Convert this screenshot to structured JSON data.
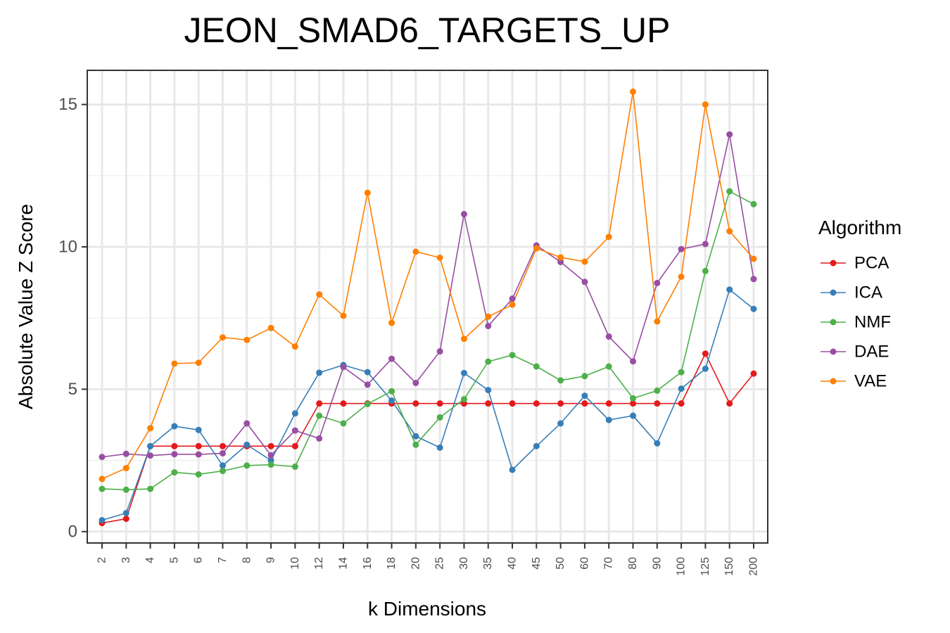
{
  "chart_data": {
    "type": "line",
    "title": "JEON_SMAD6_TARGETS_UP",
    "xlabel": "k Dimensions",
    "ylabel": "Absolute Value Z Score",
    "categories": [
      "2",
      "3",
      "4",
      "5",
      "6",
      "7",
      "8",
      "9",
      "10",
      "12",
      "14",
      "16",
      "18",
      "20",
      "25",
      "30",
      "35",
      "40",
      "45",
      "50",
      "60",
      "70",
      "80",
      "90",
      "100",
      "125",
      "150",
      "200"
    ],
    "ylim": [
      -0.4,
      16.2
    ],
    "yticks": [
      0,
      5,
      10,
      15
    ],
    "grid": true,
    "legend": {
      "title": "Algorithm",
      "position": "right"
    },
    "series": [
      {
        "name": "PCA",
        "color": "#e41a1c",
        "values": [
          0.3,
          0.45,
          3.0,
          3.0,
          3.0,
          3.0,
          3.0,
          3.0,
          3.0,
          4.5,
          4.5,
          4.5,
          4.5,
          4.5,
          4.5,
          4.5,
          4.5,
          4.5,
          4.5,
          4.5,
          4.5,
          4.5,
          4.5,
          4.5,
          4.5,
          6.25,
          4.5,
          5.55
        ]
      },
      {
        "name": "ICA",
        "color": "#377eb8",
        "values": [
          0.4,
          0.65,
          3.0,
          3.7,
          3.57,
          2.32,
          3.05,
          2.5,
          4.15,
          5.58,
          5.85,
          5.6,
          4.6,
          3.35,
          2.95,
          5.57,
          4.97,
          2.17,
          3.0,
          3.8,
          4.77,
          3.92,
          4.07,
          3.1,
          5.02,
          5.72,
          8.5,
          7.82
        ]
      },
      {
        "name": "NMF",
        "color": "#4daf4a",
        "values": [
          1.5,
          1.47,
          1.5,
          2.08,
          2.01,
          2.13,
          2.32,
          2.35,
          2.28,
          4.07,
          3.8,
          4.48,
          4.93,
          3.05,
          4.01,
          4.65,
          5.97,
          6.2,
          5.8,
          5.31,
          5.46,
          5.8,
          4.68,
          4.95,
          5.6,
          9.15,
          11.95,
          11.5
        ]
      },
      {
        "name": "DAE",
        "color": "#984ea3",
        "values": [
          2.62,
          2.73,
          2.67,
          2.72,
          2.71,
          2.75,
          3.8,
          2.68,
          3.55,
          3.27,
          5.78,
          5.16,
          6.07,
          5.22,
          6.33,
          11.15,
          7.22,
          8.18,
          10.05,
          9.47,
          8.77,
          6.85,
          5.98,
          8.73,
          9.92,
          10.1,
          13.95,
          8.87
        ]
      },
      {
        "name": "VAE",
        "color": "#ff7f00",
        "values": [
          1.85,
          2.23,
          3.63,
          5.9,
          5.93,
          6.82,
          6.73,
          7.15,
          6.5,
          8.33,
          7.58,
          11.9,
          7.33,
          9.83,
          9.62,
          6.77,
          7.55,
          7.97,
          9.95,
          9.63,
          9.48,
          10.35,
          15.45,
          7.38,
          8.95,
          15.0,
          10.55,
          9.58
        ]
      }
    ]
  }
}
